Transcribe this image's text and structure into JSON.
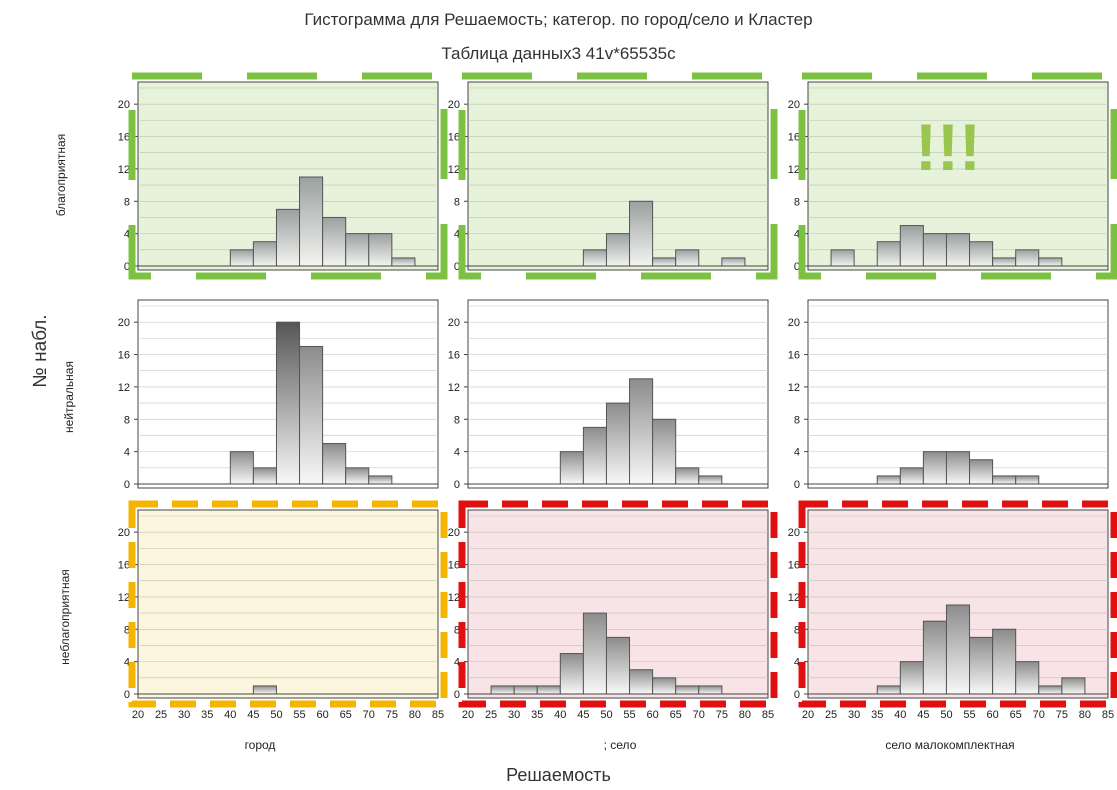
{
  "title": "Гистограмма для Решаемость; категор. по город/село и Кластер",
  "subtitle": "Таблица данных3 41v*65535c",
  "ylabel": "№ набл.",
  "xlabel": "Решаемость",
  "annotation": "!!!",
  "chart_data": {
    "type": "bar",
    "title": "Гистограмма для Решаемость; категор. по город/село и Кластер",
    "subtitle": "Таблица данных3 41v*65535c",
    "xlabel": "Решаемость",
    "ylabel": "№ набл.",
    "bins": [
      20,
      25,
      30,
      35,
      40,
      45,
      50,
      55,
      60,
      65,
      70,
      75,
      80,
      85
    ],
    "x_ticks": [
      "20",
      "25",
      "30",
      "35",
      "40",
      "45",
      "50",
      "55",
      "60",
      "65",
      "70",
      "75",
      "80",
      "85"
    ],
    "y_ticks": [
      0,
      4,
      8,
      12,
      16,
      20
    ],
    "ylim": [
      0,
      22
    ],
    "columns": [
      "город",
      "; село",
      "село малокомплектная"
    ],
    "rows": [
      "благоприятная",
      "нейтральная",
      "неблагоприятная"
    ],
    "panels": [
      {
        "row": "благоприятная",
        "column": "город",
        "values": [
          0,
          0,
          0,
          0,
          2,
          3,
          7,
          11,
          6,
          4,
          4,
          1,
          0
        ]
      },
      {
        "row": "благоприятная",
        "column": "; село",
        "values": [
          0,
          0,
          0,
          0,
          0,
          2,
          4,
          8,
          1,
          2,
          0,
          1,
          0
        ]
      },
      {
        "row": "благоприятная",
        "column": "село малокомплектная",
        "values": [
          0,
          2,
          0,
          3,
          5,
          4,
          4,
          3,
          1,
          2,
          1,
          0,
          0
        ]
      },
      {
        "row": "нейтральная",
        "column": "город",
        "values": [
          0,
          0,
          0,
          0,
          4,
          2,
          20,
          17,
          5,
          2,
          1,
          0,
          0
        ]
      },
      {
        "row": "нейтральная",
        "column": "; село",
        "values": [
          0,
          0,
          0,
          0,
          4,
          7,
          10,
          13,
          8,
          2,
          1,
          0,
          0
        ]
      },
      {
        "row": "нейтральная",
        "column": "село малокомплектная",
        "values": [
          0,
          0,
          0,
          1,
          2,
          4,
          4,
          3,
          1,
          1,
          0,
          0,
          0
        ]
      },
      {
        "row": "неблагоприятная",
        "column": "город",
        "values": [
          0,
          0,
          0,
          0,
          0,
          1,
          0,
          0,
          0,
          0,
          0,
          0,
          0
        ]
      },
      {
        "row": "неблагоприятная",
        "column": "; село",
        "values": [
          0,
          1,
          1,
          1,
          5,
          10,
          7,
          3,
          2,
          1,
          1,
          0,
          0
        ]
      },
      {
        "row": "неблагоприятная",
        "column": "село малокомплектная",
        "values": [
          0,
          0,
          0,
          1,
          4,
          9,
          11,
          7,
          8,
          4,
          1,
          2,
          0
        ]
      }
    ],
    "highlights": [
      {
        "row": "благоприятная",
        "columns": [
          "город",
          "; село",
          "село малокомплектная"
        ],
        "color": "#7cc142",
        "fill": "#e6f2da"
      },
      {
        "row": "неблагоприятная",
        "columns": [
          "город"
        ],
        "color": "#f4b400",
        "fill": "#fdf6de"
      },
      {
        "row": "неблагоприятная",
        "columns": [
          "; село",
          "село малокомплектная"
        ],
        "color": "#e01010",
        "fill": "#f8e4e6"
      }
    ],
    "grid": true
  }
}
